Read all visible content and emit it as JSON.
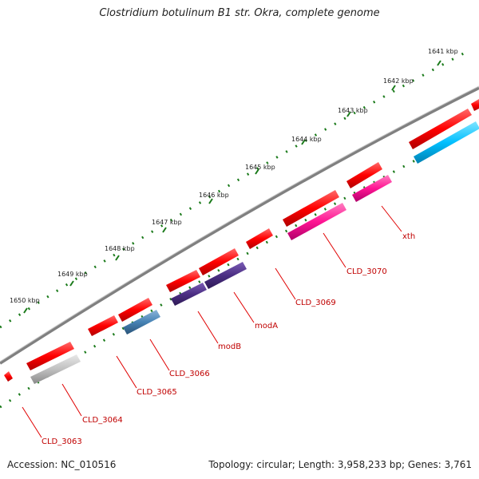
{
  "title": "Clostridium botulinum B1 str. Okra, complete genome",
  "footer": {
    "accession": "Accession: NC_010516",
    "topology": "Topology: circular; Length: 3,958,233 bp; Genes: 3,761"
  },
  "scale_labels": [
    "1641 kbp",
    "1642 kbp",
    "1643 kbp",
    "1644 kbp",
    "1645 kbp",
    "1646 kbp",
    "1647 kbp",
    "1648 kbp",
    "1649 kbp",
    "1650 kbp"
  ],
  "gene_labels": [
    "xth",
    "CLD_3070",
    "CLD_3069",
    "modA",
    "modB",
    "CLD_3066",
    "CLD_3065",
    "CLD_3064",
    "CLD_3063"
  ],
  "colors": {
    "backbone": "#808080",
    "cds": "#ff0000",
    "ticks": "#1a7a1a",
    "label": "#c00000",
    "feature_colors": [
      "#ff1493",
      "#4b2e83",
      "#4682b4",
      "#c0c0c0",
      "#00bfff"
    ]
  }
}
